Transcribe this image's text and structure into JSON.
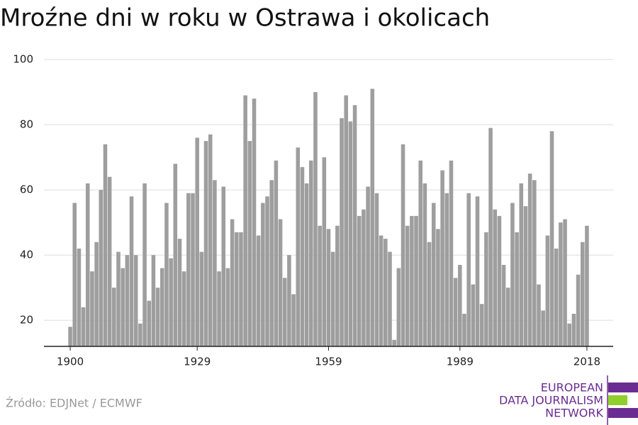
{
  "chart_data": {
    "type": "bar",
    "title": "Mroźne dni w roku w Ostrawa i okolicach",
    "x": [
      1900,
      1901,
      1902,
      1903,
      1904,
      1905,
      1906,
      1907,
      1908,
      1909,
      1910,
      1911,
      1912,
      1913,
      1914,
      1915,
      1916,
      1917,
      1918,
      1919,
      1920,
      1921,
      1922,
      1923,
      1924,
      1925,
      1926,
      1927,
      1928,
      1929,
      1930,
      1931,
      1932,
      1933,
      1934,
      1935,
      1936,
      1937,
      1938,
      1939,
      1940,
      1941,
      1942,
      1943,
      1944,
      1945,
      1946,
      1947,
      1948,
      1949,
      1950,
      1951,
      1952,
      1953,
      1954,
      1955,
      1956,
      1957,
      1958,
      1959,
      1960,
      1961,
      1962,
      1963,
      1964,
      1965,
      1966,
      1967,
      1968,
      1969,
      1970,
      1971,
      1972,
      1973,
      1974,
      1975,
      1976,
      1977,
      1978,
      1979,
      1980,
      1981,
      1982,
      1983,
      1984,
      1985,
      1986,
      1987,
      1988,
      1989,
      1990,
      1991,
      1992,
      1993,
      1994,
      1995,
      1996,
      1997,
      1998,
      1999,
      2000,
      2001,
      2002,
      2003,
      2004,
      2005,
      2006,
      2007,
      2008,
      2009,
      2010,
      2011,
      2012,
      2013,
      2014,
      2015,
      2016,
      2017,
      2018
    ],
    "values": [
      18,
      56,
      42,
      24,
      62,
      35,
      44,
      60,
      74,
      64,
      30,
      41,
      36,
      40,
      58,
      40,
      19,
      62,
      26,
      40,
      30,
      36,
      56,
      39,
      68,
      45,
      35,
      59,
      59,
      76,
      41,
      75,
      77,
      63,
      35,
      61,
      36,
      51,
      47,
      47,
      89,
      75,
      88,
      46,
      56,
      58,
      63,
      69,
      51,
      33,
      40,
      28,
      73,
      67,
      62,
      69,
      90,
      49,
      70,
      48,
      41,
      49,
      82,
      89,
      81,
      86,
      52,
      54,
      61,
      91,
      59,
      46,
      45,
      41,
      14,
      36,
      74,
      49,
      52,
      52,
      69,
      62,
      44,
      56,
      48,
      66,
      59,
      69,
      33,
      37,
      22,
      59,
      31,
      58,
      25,
      47,
      79,
      54,
      52,
      37,
      30,
      56,
      47,
      62,
      55,
      65,
      63,
      31,
      23,
      46,
      78,
      42,
      50,
      51,
      19,
      22,
      34,
      44,
      49
    ],
    "color": "#9e9e9e",
    "xlim": [
      1894,
      2024
    ],
    "xticks": [
      1900,
      1929,
      1959,
      1989,
      2018
    ],
    "ylim": [
      12,
      100
    ],
    "yticks": [
      20,
      40,
      60,
      80,
      100
    ],
    "grid": true
  },
  "footer": {
    "source": "Źródło: EDJNet / ECMWF",
    "logo": [
      "EUROPEAN",
      "DATA JOURNALISM",
      "NETWORK"
    ]
  }
}
